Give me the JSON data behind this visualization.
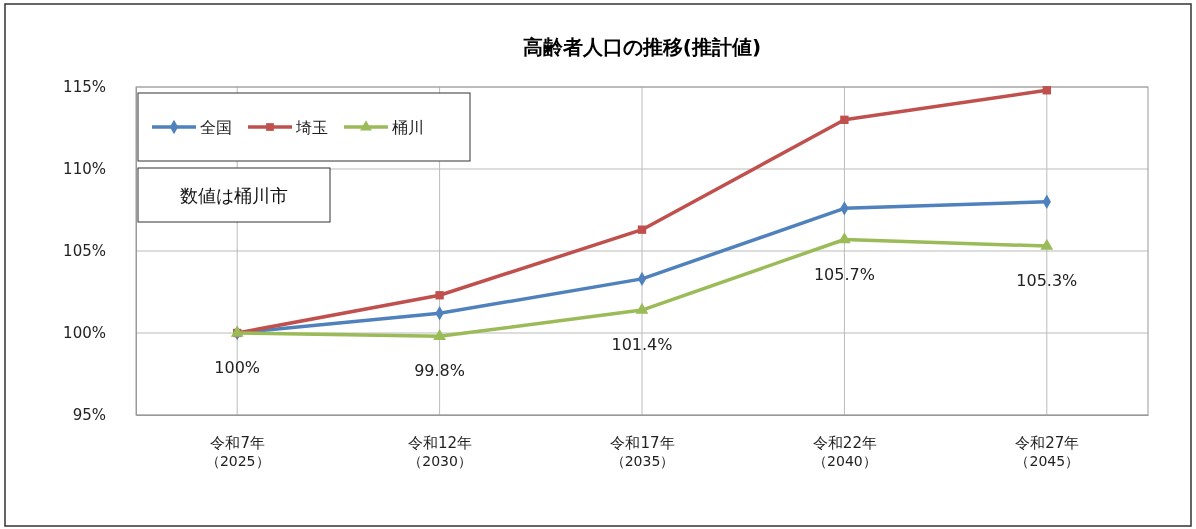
{
  "chart_data": {
    "type": "line",
    "title": "高齢者人口の推移(推計値)",
    "categories": [
      "令和7年（2025）",
      "令和12年（2030）",
      "令和17年（2035）",
      "令和22年（2040）",
      "令和27年（2045）"
    ],
    "series": [
      {
        "name": "全国",
        "color": "#4f81bd",
        "marker": "diamond",
        "values": [
          100,
          101.2,
          103.3,
          107.6,
          108.0
        ]
      },
      {
        "name": "埼玉",
        "color": "#c0504d",
        "marker": "square",
        "values": [
          100,
          102.3,
          106.3,
          113.0,
          114.8
        ]
      },
      {
        "name": "桶川",
        "color": "#9bbb59",
        "marker": "triangle",
        "values": [
          100,
          99.8,
          101.4,
          105.7,
          105.3
        ],
        "value_labels": [
          "100%",
          "99.8%",
          "101.4%",
          "105.7%",
          "105.3%"
        ]
      }
    ],
    "ylim": [
      95,
      115
    ],
    "yticks": [
      {
        "value": 95,
        "label": "95%"
      },
      {
        "value": 100,
        "label": "100%"
      },
      {
        "value": 105,
        "label": "105%"
      },
      {
        "value": 110,
        "label": "110%"
      },
      {
        "value": 115,
        "label": "115%"
      }
    ],
    "grid": true,
    "legend": "top left",
    "line_style": "solid",
    "annotations": [
      "数値は桶川市"
    ]
  }
}
